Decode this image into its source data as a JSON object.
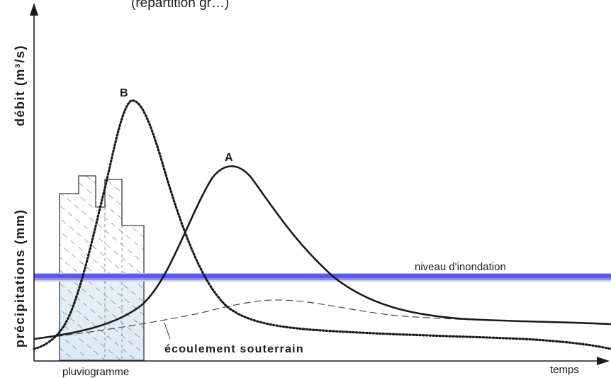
{
  "header_fragment": "(répartition gr…)",
  "axes": {
    "y_label_top": "débit (m³/s)",
    "y_label_bottom": "précipitations (mm)",
    "x_label": "temps"
  },
  "labels": {
    "curve_a": "A",
    "curve_b": "B",
    "flood_level": "niveau d'inondation",
    "groundwater": "écoulement  souterrain",
    "rain_gauge": "pluviogramme"
  },
  "colors": {
    "flood_line": "#5a5ae6",
    "flood_line_light": "#b9b9f5",
    "curve": "#1a1a1a",
    "hatch": "#555555",
    "bar_fill": "#e3edf6"
  }
}
